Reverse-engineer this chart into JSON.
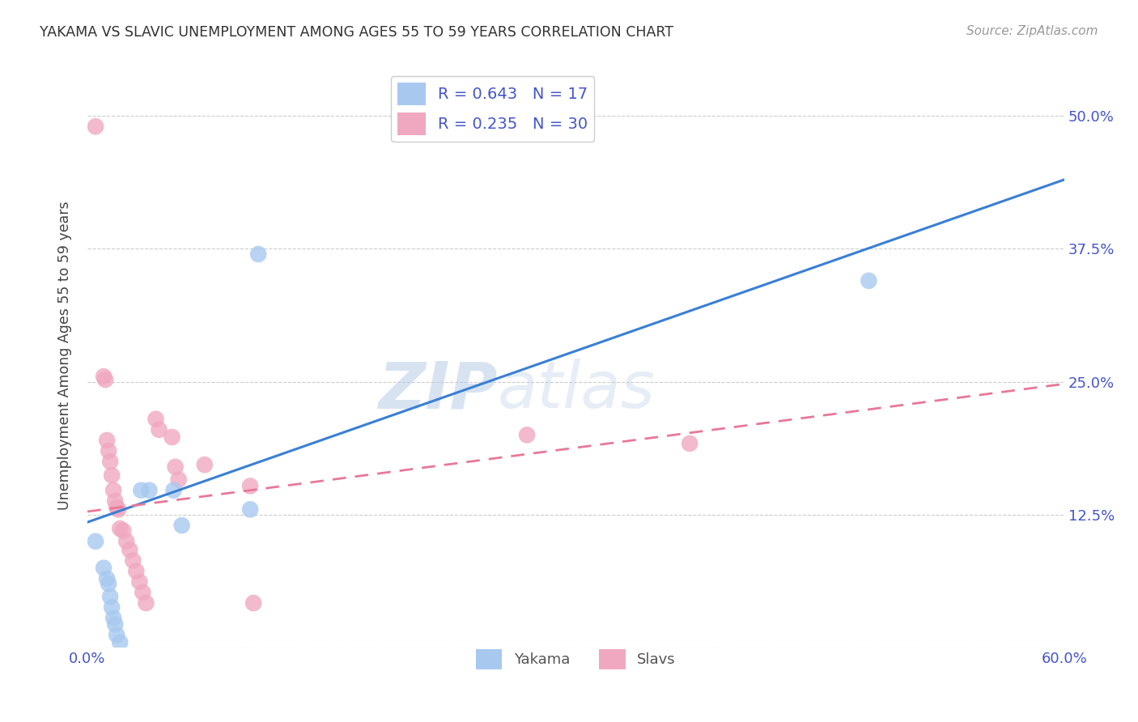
{
  "title": "YAKAMA VS SLAVIC UNEMPLOYMENT AMONG AGES 55 TO 59 YEARS CORRELATION CHART",
  "source": "Source: ZipAtlas.com",
  "ylabel": "Unemployment Among Ages 55 to 59 years",
  "xlim": [
    0.0,
    0.6
  ],
  "ylim": [
    0.0,
    0.55
  ],
  "xticks": [
    0.0,
    0.1,
    0.2,
    0.3,
    0.4,
    0.5,
    0.6
  ],
  "xticklabels": [
    "0.0%",
    "",
    "",
    "",
    "",
    "",
    "60.0%"
  ],
  "yticks": [
    0.0,
    0.125,
    0.25,
    0.375,
    0.5
  ],
  "yticklabels": [
    "",
    "12.5%",
    "25.0%",
    "37.5%",
    "50.0%"
  ],
  "yakama_R": "0.643",
  "yakama_N": "17",
  "slavs_R": "0.235",
  "slavs_N": "30",
  "yakama_color": "#a8c8f0",
  "slavs_color": "#f0a8c0",
  "yakama_line_color": "#3a7fd5",
  "slavs_line_color": "#e87898",
  "legend_text_color": "#4455cc",
  "tick_color": "#4455cc",
  "background_color": "#ffffff",
  "yakama_points": [
    [
      0.005,
      0.1
    ],
    [
      0.01,
      0.075
    ],
    [
      0.012,
      0.065
    ],
    [
      0.013,
      0.06
    ],
    [
      0.014,
      0.048
    ],
    [
      0.015,
      0.038
    ],
    [
      0.016,
      0.028
    ],
    [
      0.017,
      0.022
    ],
    [
      0.018,
      0.012
    ],
    [
      0.02,
      0.005
    ],
    [
      0.033,
      0.148
    ],
    [
      0.038,
      0.148
    ],
    [
      0.053,
      0.148
    ],
    [
      0.058,
      0.115
    ],
    [
      0.1,
      0.13
    ],
    [
      0.105,
      0.37
    ],
    [
      0.48,
      0.345
    ]
  ],
  "slavs_points": [
    [
      0.005,
      0.49
    ],
    [
      0.01,
      0.255
    ],
    [
      0.011,
      0.252
    ],
    [
      0.012,
      0.195
    ],
    [
      0.013,
      0.185
    ],
    [
      0.014,
      0.175
    ],
    [
      0.015,
      0.162
    ],
    [
      0.016,
      0.148
    ],
    [
      0.017,
      0.138
    ],
    [
      0.018,
      0.132
    ],
    [
      0.019,
      0.13
    ],
    [
      0.02,
      0.112
    ],
    [
      0.022,
      0.11
    ],
    [
      0.024,
      0.1
    ],
    [
      0.026,
      0.092
    ],
    [
      0.028,
      0.082
    ],
    [
      0.03,
      0.072
    ],
    [
      0.032,
      0.062
    ],
    [
      0.034,
      0.052
    ],
    [
      0.036,
      0.042
    ],
    [
      0.042,
      0.215
    ],
    [
      0.044,
      0.205
    ],
    [
      0.052,
      0.198
    ],
    [
      0.054,
      0.17
    ],
    [
      0.056,
      0.158
    ],
    [
      0.072,
      0.172
    ],
    [
      0.1,
      0.152
    ],
    [
      0.102,
      0.042
    ],
    [
      0.27,
      0.2
    ],
    [
      0.37,
      0.192
    ]
  ],
  "yakama_line": [
    0.0,
    0.118,
    0.6,
    0.44
  ],
  "slavs_line": [
    0.0,
    0.128,
    0.6,
    0.248
  ]
}
